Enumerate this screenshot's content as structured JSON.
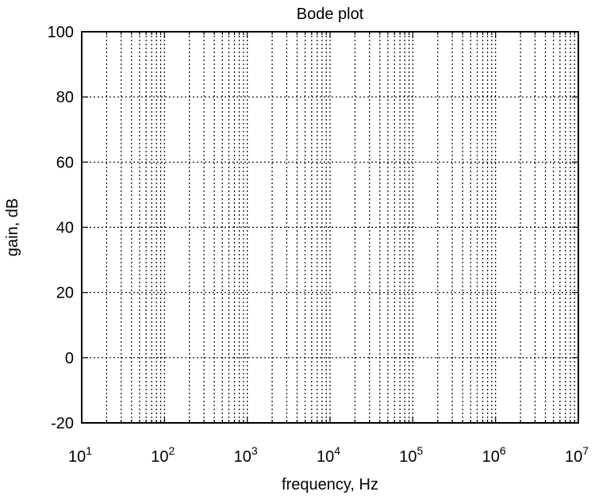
{
  "chart_data": {
    "type": "line",
    "title": "Bode plot",
    "xlabel": "frequency, Hz",
    "ylabel": "gain, dB",
    "x_scale": "log",
    "xlim": [
      10,
      10000000
    ],
    "ylim": [
      -20,
      100
    ],
    "x_ticks": [
      {
        "value": 10,
        "base": "10",
        "exp": "1"
      },
      {
        "value": 100,
        "base": "10",
        "exp": "2"
      },
      {
        "value": 1000,
        "base": "10",
        "exp": "3"
      },
      {
        "value": 10000,
        "base": "10",
        "exp": "4"
      },
      {
        "value": 100000,
        "base": "10",
        "exp": "5"
      },
      {
        "value": 1000000,
        "base": "10",
        "exp": "6"
      },
      {
        "value": 10000000,
        "base": "10",
        "exp": "7"
      }
    ],
    "y_ticks": [
      {
        "value": 100,
        "label": "100"
      },
      {
        "value": 80,
        "label": "80"
      },
      {
        "value": 60,
        "label": "60"
      },
      {
        "value": 40,
        "label": "40"
      },
      {
        "value": 20,
        "label": "20"
      },
      {
        "value": 0,
        "label": "0"
      },
      {
        "value": -20,
        "label": "-20"
      }
    ],
    "grid": true,
    "grid_style": "dotted",
    "minor_grid_x": true,
    "series": []
  },
  "colors": {
    "axes": "#000000",
    "grid": "#000000",
    "background": "#ffffff"
  }
}
